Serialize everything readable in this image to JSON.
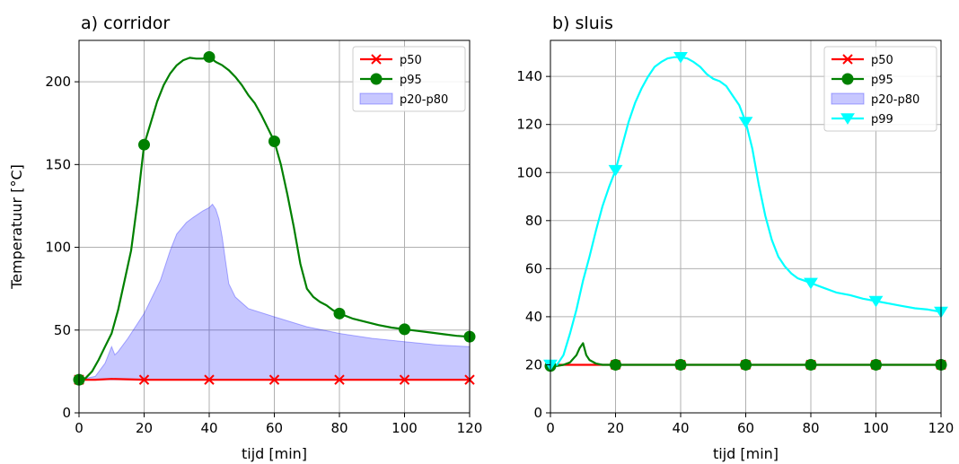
{
  "chart_data": [
    {
      "type": "line",
      "title": "a) corridor",
      "xlabel": "tijd [min]",
      "ylabel": "Temperatuur [°C]",
      "xlim": [
        0,
        120
      ],
      "ylim": [
        0,
        225
      ],
      "xticks": [
        0,
        20,
        40,
        60,
        80,
        100,
        120
      ],
      "yticks": [
        0,
        50,
        100,
        150,
        200
      ],
      "grid": true,
      "legend_position": "top-right",
      "series": [
        {
          "name": "p50",
          "color": "#ff0000",
          "marker": "x",
          "x": [
            0,
            5,
            10,
            20,
            40,
            60,
            80,
            100,
            120
          ],
          "y": [
            20,
            20,
            20.5,
            20,
            20,
            20,
            20,
            20,
            20
          ],
          "markers_x": [
            0,
            20,
            40,
            60,
            80,
            100,
            120
          ]
        },
        {
          "name": "p95",
          "color": "#008000",
          "marker": "o",
          "x": [
            0,
            2,
            4,
            6,
            8,
            10,
            12,
            14,
            16,
            18,
            20,
            22,
            24,
            26,
            28,
            30,
            32,
            34,
            36,
            38,
            40,
            42,
            44,
            46,
            48,
            50,
            52,
            54,
            56,
            58,
            60,
            62,
            64,
            66,
            68,
            70,
            72,
            74,
            76,
            78,
            80,
            84,
            88,
            92,
            96,
            100,
            104,
            108,
            112,
            116,
            120
          ],
          "y": [
            20,
            21,
            25,
            32,
            40,
            48,
            62,
            80,
            98,
            128,
            162,
            175,
            188,
            198,
            205,
            210,
            213,
            214.5,
            214,
            214,
            215,
            212,
            210,
            207,
            203,
            198,
            192,
            187,
            180,
            172,
            164,
            150,
            132,
            112,
            90,
            75,
            70,
            67,
            65,
            62,
            60,
            57,
            55,
            53,
            51.5,
            50.5,
            49.5,
            48.5,
            47.5,
            46.5,
            46
          ],
          "markers_x": [
            0,
            20,
            40,
            60,
            80,
            100,
            120
          ]
        },
        {
          "name": "p20-p80",
          "color": "#0000ff",
          "type": "area",
          "x": [
            0,
            5,
            8,
            10,
            11,
            12,
            15,
            20,
            25,
            28,
            30,
            33,
            35,
            38,
            40,
            41,
            42,
            43,
            44,
            45,
            46,
            48,
            52,
            60,
            70,
            80,
            90,
            100,
            110,
            120
          ],
          "y_low": [
            20,
            20,
            20,
            20,
            20,
            20,
            20,
            20,
            20,
            20,
            20,
            20,
            20,
            20,
            20,
            20,
            20,
            20,
            20,
            20,
            20,
            20,
            20,
            20,
            20,
            20,
            20,
            20,
            20,
            20
          ],
          "y_high": [
            20,
            22,
            30,
            40,
            35,
            37,
            45,
            60,
            80,
            98,
            108,
            115,
            118,
            122,
            124,
            126,
            123,
            117,
            106,
            92,
            78,
            70,
            63,
            58,
            52,
            48,
            45,
            43,
            41,
            40
          ]
        }
      ]
    },
    {
      "type": "line",
      "title": "b) sluis",
      "xlabel": "tijd [min]",
      "ylabel": "",
      "xlim": [
        0,
        120
      ],
      "ylim": [
        0,
        155
      ],
      "xticks": [
        0,
        20,
        40,
        60,
        80,
        100,
        120
      ],
      "yticks": [
        0,
        20,
        40,
        60,
        80,
        100,
        120,
        140
      ],
      "grid": true,
      "legend_position": "top-right",
      "series": [
        {
          "name": "p50",
          "color": "#ff0000",
          "marker": "x",
          "x": [
            0,
            20,
            40,
            60,
            80,
            100,
            120
          ],
          "y": [
            20,
            20,
            20,
            20,
            20,
            20,
            20
          ],
          "markers_x": [
            0,
            20,
            40,
            60,
            80,
            100,
            120
          ]
        },
        {
          "name": "p95",
          "color": "#008000",
          "marker": "o",
          "x": [
            0,
            2,
            4,
            6,
            8,
            9,
            10,
            11,
            12,
            14,
            16,
            18,
            20,
            40,
            60,
            80,
            100,
            120
          ],
          "y": [
            19.5,
            19.5,
            20,
            21,
            24,
            27,
            29,
            24,
            22,
            20.5,
            20,
            20,
            20,
            20,
            20,
            20,
            20,
            20
          ],
          "markers_x": [
            0,
            20,
            40,
            60,
            80,
            100,
            120
          ]
        },
        {
          "name": "p20-p80",
          "color": "#0000ff",
          "type": "area",
          "x": [
            0,
            120
          ],
          "y_low": [
            20,
            20
          ],
          "y_high": [
            20,
            20
          ]
        },
        {
          "name": "p99",
          "color": "#00ffff",
          "marker": "v",
          "x": [
            0,
            2,
            4,
            6,
            8,
            10,
            12,
            14,
            16,
            18,
            20,
            22,
            24,
            26,
            28,
            30,
            32,
            34,
            36,
            38,
            40,
            42,
            44,
            46,
            48,
            50,
            52,
            54,
            56,
            58,
            60,
            62,
            64,
            66,
            68,
            70,
            72,
            74,
            76,
            78,
            80,
            84,
            88,
            92,
            96,
            100,
            104,
            108,
            112,
            116,
            120
          ],
          "y": [
            20,
            20,
            24,
            33,
            43,
            55,
            65,
            76,
            86,
            94,
            101,
            111,
            121,
            129,
            135,
            140,
            144,
            146,
            147.5,
            148,
            148,
            147.5,
            146,
            144,
            141,
            139,
            138,
            136,
            132,
            128,
            121,
            110,
            95,
            82,
            72,
            65,
            61,
            58,
            56,
            55,
            54,
            52,
            50,
            49,
            47.5,
            46.5,
            45.5,
            44.5,
            43.5,
            43,
            42
          ],
          "markers_x": [
            0,
            20,
            40,
            60,
            80,
            100,
            120
          ]
        }
      ]
    }
  ]
}
